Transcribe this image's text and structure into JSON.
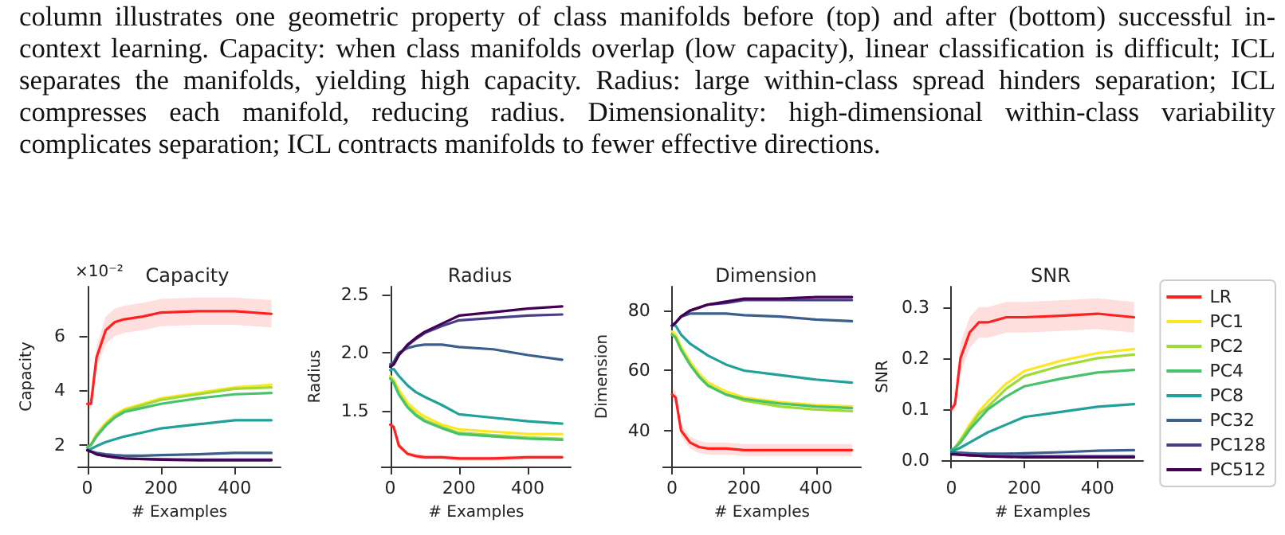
{
  "chart_data": [
    {
      "type": "other",
      "annotations": [
        "column illustrates one geometric property of class manifolds before (top) and after (bottom) successful in-context learning. Capacity: when class manifolds overlap (low capacity), linear classification is difficult; ICL separates the manifolds, yielding high capacity. Radius: large within-class spread hinders separation; ICL compresses each manifold, reducing radius. Dimensionality: high-dimensional within-class variability complicates separation; ICL contracts manifolds to fewer effective directions."
      ]
    },
    {
      "type": "line",
      "title": "Capacity",
      "xlabel": "# Examples",
      "ylabel": "Capacity",
      "annotations": [
        "×10⁻²"
      ],
      "x": [
        0,
        10,
        25,
        50,
        75,
        100,
        150,
        200,
        300,
        400,
        500
      ],
      "xlim": [
        -25,
        525
      ],
      "xticks": [
        0,
        200,
        400
      ],
      "ylim": [
        1.2,
        7.8
      ],
      "yticks": [
        2,
        4,
        6
      ],
      "legend": false,
      "series": [
        {
          "color": "#ff2020",
          "values": [
            3.5,
            3.5,
            5.2,
            6.2,
            6.5,
            6.6,
            6.7,
            6.85,
            6.9,
            6.9,
            6.8
          ],
          "lower": [
            3.3,
            3.3,
            4.8,
            5.7,
            6.0,
            6.1,
            6.2,
            6.35,
            6.4,
            6.4,
            6.3
          ],
          "upper": [
            3.7,
            3.7,
            5.6,
            6.7,
            7.0,
            7.1,
            7.2,
            7.35,
            7.4,
            7.4,
            7.3
          ]
        },
        {
          "color": "#fde725",
          "values": [
            1.9,
            2.0,
            2.4,
            2.8,
            3.1,
            3.3,
            3.5,
            3.7,
            3.9,
            4.1,
            4.2
          ]
        },
        {
          "color": "#a0da39",
          "values": [
            1.9,
            2.0,
            2.35,
            2.75,
            3.05,
            3.25,
            3.45,
            3.65,
            3.85,
            4.05,
            4.1
          ]
        },
        {
          "color": "#4ac16d",
          "values": [
            1.9,
            2.0,
            2.3,
            2.7,
            3.0,
            3.2,
            3.35,
            3.5,
            3.7,
            3.85,
            3.9
          ]
        },
        {
          "color": "#22a09a",
          "values": [
            1.8,
            1.85,
            1.95,
            2.1,
            2.2,
            2.3,
            2.45,
            2.6,
            2.75,
            2.9,
            2.9
          ]
        },
        {
          "color": "#3b5e8c",
          "values": [
            1.8,
            1.75,
            1.7,
            1.65,
            1.62,
            1.6,
            1.6,
            1.62,
            1.65,
            1.7,
            1.7
          ]
        },
        {
          "color": "#483d8b",
          "values": [
            1.8,
            1.75,
            1.65,
            1.6,
            1.55,
            1.5,
            1.48,
            1.47,
            1.45,
            1.45,
            1.45
          ]
        },
        {
          "color": "#440154",
          "values": [
            1.8,
            1.75,
            1.65,
            1.58,
            1.53,
            1.5,
            1.47,
            1.45,
            1.43,
            1.43,
            1.43
          ]
        }
      ]
    },
    {
      "type": "line",
      "title": "Radius",
      "xlabel": "# Examples",
      "ylabel": "Radius",
      "x": [
        0,
        10,
        25,
        50,
        75,
        100,
        150,
        200,
        300,
        400,
        500
      ],
      "xlim": [
        -25,
        525
      ],
      "xticks": [
        0,
        200,
        400
      ],
      "ylim": [
        1.02,
        2.57
      ],
      "yticks": [
        1.5,
        {
          "value": 2,
          "label": "2.0"
        },
        2.5
      ],
      "legend": false,
      "series": [
        {
          "color": "#ff2020",
          "values": [
            1.38,
            1.36,
            1.2,
            1.13,
            1.11,
            1.1,
            1.1,
            1.09,
            1.09,
            1.1,
            1.1
          ],
          "lower": [
            1.35,
            1.33,
            1.17,
            1.11,
            1.09,
            1.08,
            1.08,
            1.07,
            1.07,
            1.08,
            1.08
          ],
          "upper": [
            1.41,
            1.39,
            1.23,
            1.15,
            1.13,
            1.12,
            1.12,
            1.11,
            1.11,
            1.12,
            1.12
          ]
        },
        {
          "color": "#fde725",
          "values": [
            1.8,
            1.77,
            1.68,
            1.57,
            1.5,
            1.45,
            1.38,
            1.34,
            1.32,
            1.3,
            1.3
          ]
        },
        {
          "color": "#a0da39",
          "values": [
            1.78,
            1.75,
            1.65,
            1.54,
            1.47,
            1.42,
            1.36,
            1.31,
            1.29,
            1.27,
            1.26
          ]
        },
        {
          "color": "#4ac16d",
          "values": [
            1.78,
            1.74,
            1.64,
            1.53,
            1.46,
            1.41,
            1.35,
            1.3,
            1.28,
            1.26,
            1.25
          ]
        },
        {
          "color": "#22a09a",
          "values": [
            1.85,
            1.86,
            1.8,
            1.72,
            1.66,
            1.62,
            1.55,
            1.47,
            1.44,
            1.41,
            1.39
          ]
        },
        {
          "color": "#3b5e8c",
          "values": [
            1.9,
            1.92,
            2.0,
            2.04,
            2.06,
            2.07,
            2.07,
            2.05,
            2.03,
            1.98,
            1.94
          ]
        },
        {
          "color": "#483d8b",
          "values": [
            1.88,
            1.9,
            1.98,
            2.06,
            2.12,
            2.17,
            2.23,
            2.28,
            2.3,
            2.32,
            2.33
          ]
        },
        {
          "color": "#440154",
          "values": [
            1.88,
            1.9,
            1.98,
            2.07,
            2.13,
            2.18,
            2.25,
            2.32,
            2.35,
            2.38,
            2.4
          ]
        }
      ]
    },
    {
      "type": "line",
      "title": "Dimension",
      "xlabel": "# Examples",
      "ylabel": "Dimension",
      "x": [
        0,
        10,
        25,
        50,
        75,
        100,
        150,
        200,
        300,
        400,
        500
      ],
      "xlim": [
        -25,
        525
      ],
      "xticks": [
        0,
        200,
        400
      ],
      "ylim": [
        28,
        88
      ],
      "yticks": [
        40,
        60,
        80
      ],
      "legend": false,
      "series": [
        {
          "color": "#ff2020",
          "values": [
            52,
            51,
            40,
            36,
            34.5,
            34,
            34,
            33.5,
            33.5,
            33.5,
            33.5
          ],
          "lower": [
            50,
            49,
            38,
            34,
            32.5,
            32,
            32,
            31.5,
            31.5,
            31.5,
            31.5
          ],
          "upper": [
            54,
            53,
            42,
            38,
            36.5,
            36,
            36,
            35.5,
            35.5,
            35.5,
            35.5
          ]
        },
        {
          "color": "#fde725",
          "values": [
            73,
            72,
            68,
            63,
            59,
            56,
            53,
            51,
            49.5,
            48.5,
            48
          ]
        },
        {
          "color": "#a0da39",
          "values": [
            72,
            71,
            67,
            62,
            58,
            55,
            52,
            50,
            48,
            47,
            46.5
          ]
        },
        {
          "color": "#4ac16d",
          "values": [
            72,
            71,
            67,
            62,
            58,
            55,
            52,
            50.5,
            49,
            48,
            47.5
          ]
        },
        {
          "color": "#22a09a",
          "values": [
            75,
            75,
            72,
            69,
            67,
            65,
            62,
            60,
            58.5,
            57,
            56
          ]
        },
        {
          "color": "#3b5e8c",
          "values": [
            75,
            76,
            78,
            79,
            79,
            79,
            79,
            78.5,
            78,
            77,
            76.5
          ]
        },
        {
          "color": "#483d8b",
          "values": [
            75,
            76,
            78,
            80,
            81,
            82,
            82.5,
            83.5,
            83.5,
            83.5,
            83.5
          ]
        },
        {
          "color": "#440154",
          "values": [
            75,
            76,
            78,
            80,
            81,
            82,
            83,
            84,
            84,
            84.5,
            84.5
          ]
        }
      ]
    },
    {
      "type": "line",
      "title": "SNR",
      "xlabel": "# Examples",
      "ylabel": "SNR",
      "x": [
        0,
        10,
        25,
        50,
        75,
        100,
        150,
        200,
        300,
        400,
        500
      ],
      "xlim": [
        -25,
        525
      ],
      "xticks": [
        0,
        200,
        400
      ],
      "ylim": [
        -0.012,
        0.34
      ],
      "yticks": [
        {
          "value": 0,
          "label": "0.0"
        },
        0.1,
        0.2,
        0.3
      ],
      "legend": "right",
      "series": [
        {
          "name": "LR",
          "color": "#ff2020",
          "values": [
            0.1,
            0.11,
            0.2,
            0.25,
            0.27,
            0.27,
            0.28,
            0.28,
            0.283,
            0.287,
            0.28
          ],
          "lower": [
            0.09,
            0.1,
            0.17,
            0.22,
            0.24,
            0.24,
            0.25,
            0.25,
            0.253,
            0.257,
            0.25
          ],
          "upper": [
            0.11,
            0.12,
            0.23,
            0.28,
            0.3,
            0.3,
            0.31,
            0.31,
            0.313,
            0.317,
            0.31
          ]
        },
        {
          "name": "PC1",
          "color": "#fde725",
          "values": [
            0.02,
            0.025,
            0.04,
            0.07,
            0.095,
            0.115,
            0.15,
            0.175,
            0.195,
            0.21,
            0.218
          ]
        },
        {
          "name": "PC2",
          "color": "#a0da39",
          "values": [
            0.02,
            0.025,
            0.04,
            0.065,
            0.09,
            0.105,
            0.14,
            0.165,
            0.185,
            0.2,
            0.207
          ]
        },
        {
          "name": "PC4",
          "color": "#4ac16d",
          "values": [
            0.02,
            0.025,
            0.035,
            0.06,
            0.08,
            0.1,
            0.125,
            0.145,
            0.16,
            0.172,
            0.177
          ]
        },
        {
          "name": "PC8",
          "color": "#22a09a",
          "values": [
            0.02,
            0.02,
            0.025,
            0.035,
            0.045,
            0.055,
            0.07,
            0.085,
            0.095,
            0.105,
            0.11
          ]
        },
        {
          "name": "PC32",
          "color": "#3b5e8c",
          "values": [
            0.015,
            0.015,
            0.015,
            0.014,
            0.013,
            0.013,
            0.013,
            0.014,
            0.016,
            0.019,
            0.02
          ]
        },
        {
          "name": "PC128",
          "color": "#483d8b",
          "values": [
            0.012,
            0.012,
            0.011,
            0.01,
            0.009,
            0.008,
            0.008,
            0.008,
            0.008,
            0.008,
            0.008
          ]
        },
        {
          "name": "PC512",
          "color": "#440154",
          "values": [
            0.012,
            0.012,
            0.011,
            0.01,
            0.009,
            0.008,
            0.007,
            0.006,
            0.006,
            0.006,
            0.006
          ]
        }
      ]
    }
  ]
}
